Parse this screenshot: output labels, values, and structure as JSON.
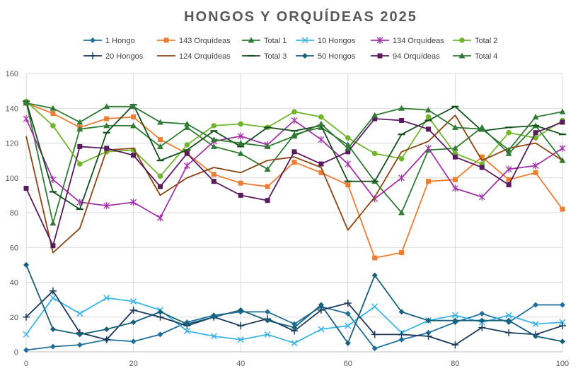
{
  "chart_data": {
    "type": "line",
    "title": "HONGOS Y ORQUÍDEAS 2025",
    "xlabel": "",
    "ylabel": "",
    "xlim": [
      0,
      100
    ],
    "ylim": [
      0,
      160
    ],
    "x_ticks": [
      "0",
      "20",
      "40",
      "60",
      "80",
      "100"
    ],
    "y_ticks": [
      "0",
      "20",
      "40",
      "60",
      "80",
      "100",
      "120",
      "140",
      "160"
    ],
    "grid": true,
    "legend_position": "top",
    "x": [
      0,
      5,
      10,
      15,
      20,
      25,
      30,
      35,
      40,
      45,
      50,
      55,
      60,
      65,
      70,
      75,
      80,
      85,
      90,
      95,
      100
    ],
    "series": [
      {
        "name": "1 Hongo",
        "color": "#1f6f9a",
        "marker": "diamond",
        "values": [
          1,
          3,
          4,
          7,
          6,
          10,
          17,
          21,
          23,
          23,
          16,
          26,
          22,
          2,
          7,
          11,
          17,
          22,
          17,
          27,
          27
        ]
      },
      {
        "name": "143 Orquídeas",
        "color": "#ed7d31",
        "marker": "square",
        "values": [
          143,
          137,
          129,
          134,
          135,
          122,
          114,
          102,
          97,
          95,
          109,
          103,
          96,
          54,
          57,
          98,
          99,
          112,
          99,
          103,
          82
        ]
      },
      {
        "name": "Total 1",
        "color": "#2e7d32",
        "marker": "triangle",
        "values": [
          144,
          74,
          128,
          130,
          130,
          118,
          129,
          118,
          114,
          105,
          125,
          129,
          119,
          98,
          80,
          116,
          117,
          129,
          114,
          130,
          110
        ]
      },
      {
        "name": "10 Hongos",
        "color": "#3bb4e6",
        "marker": "x",
        "values": [
          10,
          31,
          22,
          31,
          29,
          24,
          12,
          9,
          7,
          10,
          5,
          13,
          15,
          26,
          11,
          18,
          21,
          17,
          21,
          16,
          17
        ]
      },
      {
        "name": "134 Orquídeas",
        "color": "#a333a8",
        "marker": "star",
        "values": [
          134,
          99,
          86,
          84,
          86,
          77,
          107,
          121,
          124,
          119,
          133,
          122,
          108,
          88,
          100,
          117,
          94,
          89,
          105,
          107,
          117
        ]
      },
      {
        "name": "Total 2",
        "color": "#70b62d",
        "marker": "circle",
        "values": [
          144,
          130,
          108,
          115,
          116,
          101,
          119,
          130,
          131,
          129,
          138,
          135,
          123,
          114,
          111,
          135,
          114,
          108,
          126,
          123,
          133
        ]
      },
      {
        "name": "20 Hongos",
        "color": "#1b3a5c",
        "marker": "plus",
        "values": [
          20,
          35,
          11,
          7,
          24,
          20,
          15,
          20,
          15,
          19,
          12,
          24,
          28,
          10,
          10,
          9,
          4,
          14,
          11,
          10,
          15
        ]
      },
      {
        "name": "124 Orquídeas",
        "color": "#8b4513",
        "marker": "none",
        "values": [
          124,
          57,
          71,
          116,
          117,
          90,
          100,
          106,
          103,
          110,
          112,
          106,
          70,
          89,
          115,
          121,
          136,
          110,
          117,
          120,
          110
        ]
      },
      {
        "name": "Total 3",
        "color": "#14501e",
        "marker": "dash",
        "values": [
          144,
          92,
          82,
          126,
          142,
          110,
          116,
          127,
          118,
          129,
          127,
          130,
          98,
          98,
          125,
          133,
          141,
          127,
          129,
          130,
          125
        ]
      },
      {
        "name": "50 Hongos",
        "color": "#17607a",
        "marker": "diamond",
        "values": [
          50,
          13,
          10,
          13,
          17,
          23,
          16,
          20,
          24,
          18,
          14,
          27,
          5,
          44,
          23,
          18,
          18,
          18,
          18,
          9,
          6
        ]
      },
      {
        "name": "94 Orquídeas",
        "color": "#5a1a5e",
        "marker": "square",
        "values": [
          94,
          61,
          118,
          117,
          113,
          95,
          114,
          98,
          90,
          87,
          115,
          108,
          115,
          134,
          133,
          128,
          112,
          106,
          96,
          126,
          132
        ]
      },
      {
        "name": "Total 4",
        "color": "#2f7a34",
        "marker": "triangle",
        "values": [
          143,
          140,
          132,
          141,
          141,
          132,
          131,
          122,
          120,
          118,
          124,
          131,
          117,
          136,
          140,
          139,
          129,
          128,
          116,
          135,
          138
        ]
      }
    ]
  }
}
